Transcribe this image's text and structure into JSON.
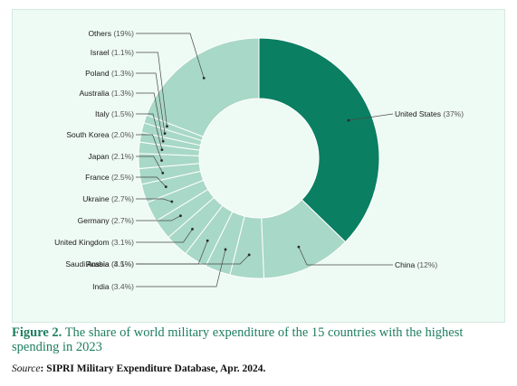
{
  "chart_data": {
    "type": "pie",
    "donut": true,
    "categories": [
      "United States",
      "China",
      "Russia",
      "India",
      "Saudi Arabia",
      "United Kingdom",
      "Germany",
      "Ukraine",
      "France",
      "Japan",
      "South Korea",
      "Italy",
      "Australia",
      "Poland",
      "Israel",
      "Others"
    ],
    "values": [
      37,
      12,
      4.5,
      3.4,
      3.1,
      3.1,
      2.7,
      2.7,
      2.5,
      2.1,
      2.0,
      1.5,
      1.3,
      1.3,
      1.1,
      19
    ],
    "value_labels": [
      "(37%)",
      "(12%)",
      "(4.5%)",
      "(3.4%)",
      "(3.1%)",
      "(3.1%)",
      "(2.7%)",
      "(2.7%)",
      "(2.5%)",
      "(2.1%)",
      "(2.0%)",
      "(1.5%)",
      "(1.3%)",
      "(1.3%)",
      "(1.1%)",
      "(19%)"
    ],
    "colors": {
      "highlight": "#0a7f62",
      "others": "#a8d8c7",
      "background": "#eefaf4"
    },
    "legend": "none"
  },
  "caption": {
    "label": "Figure 2.",
    "text": "The share of world military expenditure of the 15 countries with the highest spending in 2023"
  },
  "source": {
    "label": "Source",
    "text": ": SIPRI Military Expenditure Database, Apr. 2024."
  }
}
